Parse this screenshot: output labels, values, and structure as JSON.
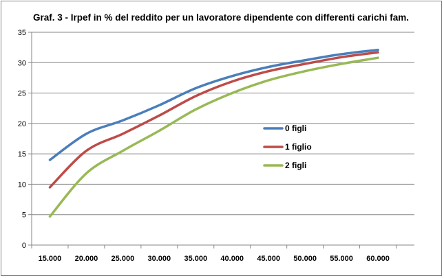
{
  "chart_data": {
    "type": "line",
    "title": "Graf. 3 - Irpef in % del reddito per un lavoratore dipendente con differenti carichi fam.",
    "xlabel": "",
    "ylabel": "",
    "x": [
      15000,
      20000,
      25000,
      30000,
      35000,
      40000,
      45000,
      50000,
      55000,
      60000
    ],
    "x_tick_labels": [
      "15.000",
      "20.000",
      "25.000",
      "30.000",
      "35.000",
      "40.000",
      "45.000",
      "50.000",
      "55.000",
      "60.000"
    ],
    "ylim": [
      0,
      35
    ],
    "y_ticks": [
      0,
      5,
      10,
      15,
      20,
      25,
      30,
      35
    ],
    "y_tick_labels": [
      "0",
      "5",
      "10",
      "15",
      "20",
      "25",
      "30",
      "35"
    ],
    "grid": "horizontal",
    "legend_position": "right-middle",
    "series": [
      {
        "name": "0 figli",
        "color": "#4a7ebb",
        "values": [
          14.0,
          18.3,
          20.5,
          23.0,
          25.8,
          27.8,
          29.3,
          30.4,
          31.4,
          32.1
        ]
      },
      {
        "name": "1 figlio",
        "color": "#be4b48",
        "values": [
          9.5,
          15.5,
          18.3,
          21.3,
          24.5,
          26.9,
          28.6,
          29.8,
          30.9,
          31.7
        ]
      },
      {
        "name": "2 figli",
        "color": "#98b954",
        "values": [
          4.7,
          11.8,
          15.5,
          18.8,
          22.3,
          25.0,
          27.1,
          28.6,
          29.8,
          30.8
        ]
      }
    ]
  }
}
